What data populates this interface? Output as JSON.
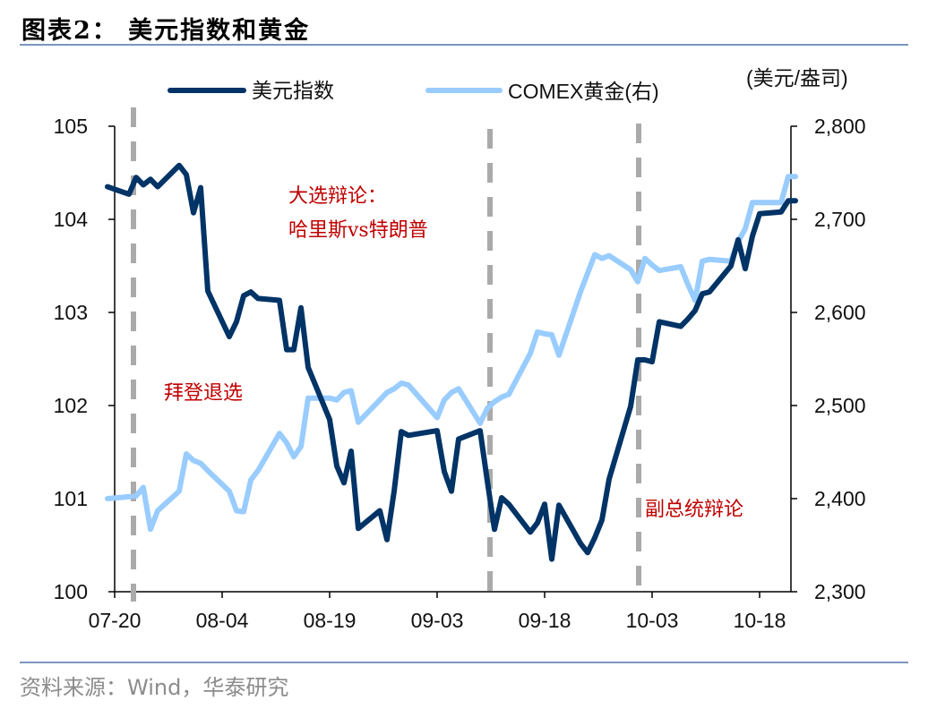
{
  "header": {
    "title": "图表2：  美元指数和黄金"
  },
  "footer": {
    "source": "资料来源：Wind，华泰研究"
  },
  "colors": {
    "usd_index": "#003366",
    "gold": "#99ccff",
    "event_line": "#aaaaaa",
    "annotation": "#c00000",
    "rule": "#7a96bd"
  },
  "chart_data": {
    "type": "line",
    "title": "美元指数和黄金",
    "xlabel": "",
    "ylabel_left": "",
    "ylabel_right": "(美元/盎司)",
    "x_ticks": [
      "07-20",
      "08-04",
      "08-19",
      "09-03",
      "09-18",
      "10-03",
      "10-18"
    ],
    "ylim_left": [
      100,
      105
    ],
    "yticks_left": [
      "100",
      "101",
      "102",
      "103",
      "104",
      "105"
    ],
    "ylim_right": [
      2300,
      2800
    ],
    "yticks_right": [
      "2,300",
      "2,400",
      "2,500",
      "2,600",
      "2,700",
      "2,800"
    ],
    "grid": false,
    "legend_position": "top",
    "legend": [
      "美元指数",
      "COMEX黄金(右)"
    ],
    "x": [
      "07-19",
      "07-22",
      "07-23",
      "07-24",
      "07-25",
      "07-26",
      "07-29",
      "07-30",
      "07-31",
      "08-01",
      "08-02",
      "08-05",
      "08-06",
      "08-07",
      "08-08",
      "08-09",
      "08-12",
      "08-13",
      "08-14",
      "08-15",
      "08-16",
      "08-19",
      "08-20",
      "08-21",
      "08-22",
      "08-23",
      "08-26",
      "08-27",
      "08-28",
      "08-29",
      "08-30",
      "09-03",
      "09-04",
      "09-05",
      "09-06",
      "09-09",
      "09-10",
      "09-11",
      "09-12",
      "09-13",
      "09-16",
      "09-17",
      "09-18",
      "09-19",
      "09-20",
      "09-23",
      "09-24",
      "09-25",
      "09-26",
      "09-27",
      "09-30",
      "10-01",
      "10-02",
      "10-03",
      "10-04",
      "10-07",
      "10-08",
      "10-09",
      "10-10",
      "10-11",
      "10-14",
      "10-15",
      "10-16",
      "10-17",
      "10-18",
      "10-21",
      "10-22",
      "10-23"
    ],
    "series": [
      {
        "name": "美元指数",
        "axis": "left",
        "values": [
          104.35,
          104.27,
          104.45,
          104.37,
          104.43,
          104.35,
          104.58,
          104.48,
          104.07,
          104.34,
          103.23,
          102.74,
          102.9,
          103.18,
          103.22,
          103.15,
          103.13,
          102.6,
          102.6,
          103.05,
          102.41,
          101.85,
          101.35,
          101.17,
          101.51,
          100.68,
          100.87,
          100.56,
          101.08,
          101.72,
          101.68,
          101.73,
          101.29,
          101.08,
          101.64,
          101.73,
          101.19,
          100.67,
          101.01,
          100.94,
          100.64,
          100.74,
          100.94,
          100.35,
          100.93,
          100.52,
          100.42,
          100.58,
          100.77,
          101.21,
          101.99,
          102.49,
          102.49,
          102.47,
          102.9,
          102.85,
          102.93,
          103.02,
          103.2,
          103.22,
          103.5,
          103.78,
          103.47,
          103.82,
          104.06,
          104.08,
          104.2,
          104.2
        ]
      },
      {
        "name": "COMEX黄金(右)",
        "axis": "right",
        "values": [
          2400,
          2402,
          2403,
          2412,
          2367,
          2387,
          2408,
          2448,
          2441,
          2438,
          2430,
          2408,
          2387,
          2386,
          2420,
          2430,
          2470,
          2460,
          2445,
          2456,
          2508,
          2508,
          2506,
          2514,
          2516,
          2482,
          2506,
          2514,
          2518,
          2524,
          2522,
          2487,
          2506,
          2514,
          2518,
          2481,
          2497,
          2504,
          2509,
          2512,
          2556,
          2579,
          2577,
          2576,
          2554,
          2622,
          2642,
          2662,
          2658,
          2661,
          2646,
          2633,
          2658,
          2651,
          2645,
          2649,
          2630,
          2613,
          2655,
          2657,
          2655,
          2676,
          2690,
          2718,
          2718,
          2718,
          2746,
          2746
        ]
      }
    ],
    "event_lines": [
      {
        "date": "07-21",
        "label": "拜登退选"
      },
      {
        "date": "09-10",
        "label": "大选辩论：哈里斯vs特朗普"
      },
      {
        "date": "10-01",
        "label": "副总统辩论"
      }
    ],
    "annotations": [
      "大选辩论：",
      "哈里斯vs特朗普",
      "拜登退选",
      "副总统辩论"
    ]
  },
  "plot": {
    "legend_usd": "美元指数",
    "legend_gold": "COMEX黄金(右)",
    "right_unit": "(美元/盎司)",
    "annot_debate_line1": "大选辩论：",
    "annot_debate_line2": "哈里斯vs特朗普",
    "annot_biden": "拜登退选",
    "annot_vp": "副总统辩论",
    "x_ticks": [
      "07-20",
      "08-04",
      "08-19",
      "09-03",
      "09-18",
      "10-03",
      "10-18"
    ],
    "y_left": [
      "105",
      "104",
      "103",
      "102",
      "101",
      "100"
    ],
    "y_right": [
      "2,800",
      "2,700",
      "2,600",
      "2,500",
      "2,400",
      "2,300"
    ]
  }
}
